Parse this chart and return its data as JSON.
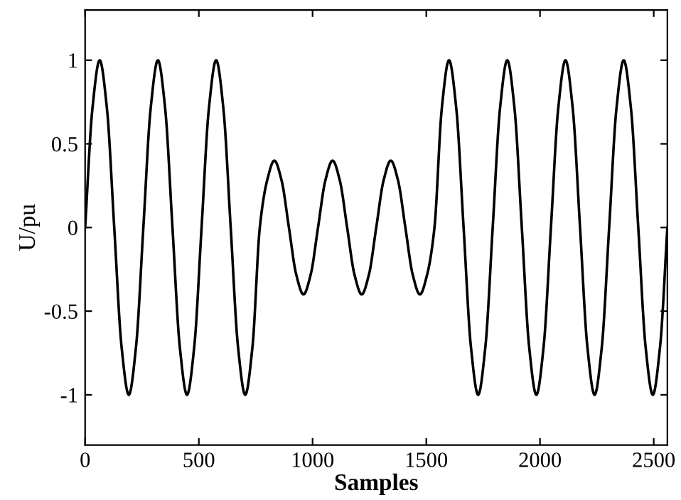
{
  "chart_data": {
    "type": "line",
    "xlabel": "Samples",
    "ylabel": "U/pu",
    "x": [
      0,
      32,
      64,
      96,
      128,
      160,
      192,
      224,
      256,
      288,
      320,
      352,
      384,
      416,
      448,
      480,
      512,
      544,
      576,
      608,
      640,
      672,
      704,
      736,
      768,
      800,
      832,
      864,
      896,
      928,
      960,
      992,
      1024,
      1056,
      1088,
      1120,
      1152,
      1184,
      1216,
      1248,
      1280,
      1312,
      1344,
      1376,
      1408,
      1440,
      1472,
      1504,
      1536,
      1568,
      1600,
      1632,
      1664,
      1696,
      1728,
      1760,
      1792,
      1824,
      1856,
      1888,
      1920,
      1952,
      1984,
      2016,
      2048,
      2080,
      2112,
      2144,
      2176,
      2208,
      2240,
      2272,
      2304,
      2336,
      2368,
      2400,
      2432,
      2464,
      2496,
      2528,
      2560
    ],
    "series": [
      {
        "color": "#000000",
        "values": [
          0,
          0.71,
          1,
          0.71,
          0,
          -0.71,
          -1,
          -0.71,
          0,
          0.71,
          1,
          0.71,
          0,
          -0.71,
          -1,
          -0.71,
          0,
          0.71,
          1,
          0.71,
          0,
          -0.71,
          -1,
          -0.71,
          0,
          0.28,
          0.4,
          0.28,
          0,
          -0.28,
          -0.4,
          -0.28,
          0,
          0.28,
          0.4,
          0.28,
          0,
          -0.28,
          -0.4,
          -0.28,
          0,
          0.28,
          0.4,
          0.28,
          0,
          -0.28,
          -0.4,
          -0.28,
          0,
          0.71,
          1,
          0.71,
          0,
          -0.71,
          -1,
          -0.71,
          0,
          0.71,
          1,
          0.71,
          0,
          -0.71,
          -1,
          -0.71,
          0,
          0.71,
          1,
          0.71,
          0,
          -0.71,
          -1,
          -0.71,
          0,
          0.71,
          1,
          0.71,
          0,
          -0.71,
          -1,
          -0.71,
          0
        ]
      }
    ],
    "xlim": [
      0,
      2560
    ],
    "ylim": [
      -1.3,
      1.3
    ],
    "xticks": [
      0,
      500,
      1000,
      1500,
      2000,
      2500
    ],
    "yticks": [
      -1,
      -0.5,
      0,
      0.5,
      1
    ],
    "grid": false,
    "marker": "none",
    "line_style": "solid"
  }
}
